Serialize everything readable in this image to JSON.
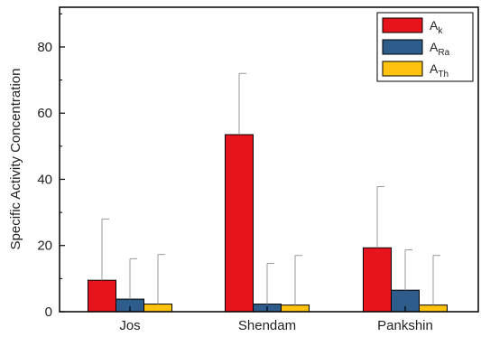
{
  "chart_data": {
    "type": "bar",
    "categories": [
      "Jos",
      "Shendam",
      "Pankshin"
    ],
    "ylabel": "Specific Activity Concentration",
    "xlabel": "",
    "ylim": [
      0,
      92
    ],
    "yticks": [
      0,
      20,
      40,
      60,
      80
    ],
    "grid": false,
    "legend_position": "top-right",
    "series": [
      {
        "name": "A",
        "sub": "k",
        "color": "#e8141c",
        "values": [
          9.5,
          53.5,
          19.3
        ],
        "errors": [
          18.5,
          18.5,
          18.5
        ]
      },
      {
        "name": "A",
        "sub": "Ra",
        "color": "#2e5d8c",
        "values": [
          3.8,
          2.3,
          6.5
        ],
        "errors": [
          12.2,
          12.3,
          12.2
        ]
      },
      {
        "name": "A",
        "sub": "Th",
        "color": "#ffc20e",
        "values": [
          2.3,
          2.0,
          2.0
        ],
        "errors": [
          15.0,
          15.0,
          15.0
        ]
      }
    ]
  }
}
